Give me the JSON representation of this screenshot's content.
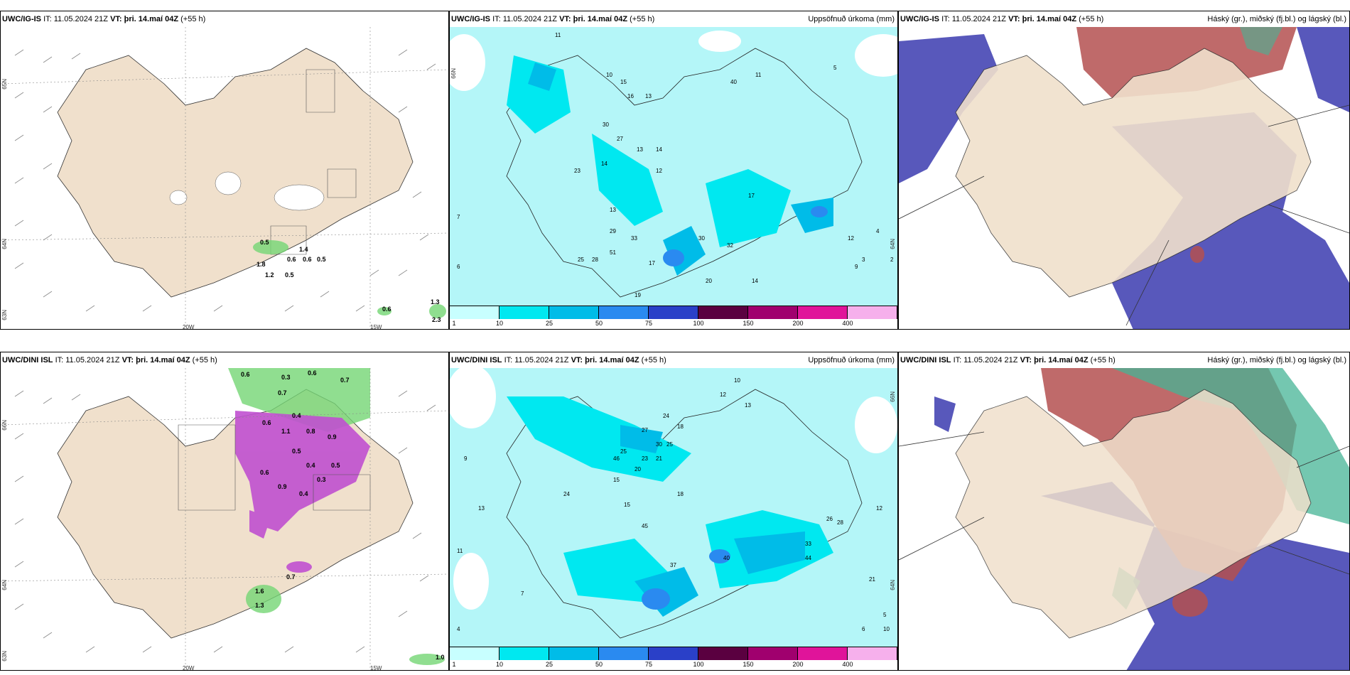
{
  "panels": [
    {
      "id": "p1",
      "model": "UWC/IG-IS",
      "it_label": "IT:",
      "it_value": "11.05.2024 21Z",
      "vt_label": "VT:",
      "vt_value": "þri. 14.maí 04Z",
      "lead": "(+55 h)",
      "right_title": "",
      "lat_labels": [
        "65N",
        "64N",
        "63N"
      ],
      "lon_labels": [
        "20W",
        "15W"
      ],
      "values": [
        "0.5",
        "1.4",
        "0.6",
        "0.6",
        "0.5",
        "1.2",
        "0.5",
        "0.6",
        "1.3",
        "2.3",
        "1.8"
      ]
    },
    {
      "id": "p2",
      "model": "UWC/IG-IS",
      "it_label": "IT:",
      "it_value": "11.05.2024 21Z",
      "vt_label": "VT:",
      "vt_value": "þri. 14.maí 04Z",
      "lead": "(+55 h)",
      "right_title": "Uppsöfnuð úrkoma (mm)",
      "lat_labels": [
        "66N",
        "64N"
      ],
      "values": [
        "11",
        "10",
        "15",
        "16",
        "13",
        "30",
        "27",
        "13",
        "14",
        "12",
        "23",
        "14",
        "13",
        "29",
        "33",
        "51",
        "25",
        "28",
        "17",
        "20",
        "17",
        "30",
        "32",
        "40",
        "11",
        "7",
        "6",
        "12",
        "14",
        "19",
        "9",
        "5",
        "3",
        "2",
        "4"
      ]
    },
    {
      "id": "p3",
      "model": "UWC/IG-IS",
      "it_label": "IT:",
      "it_value": "11.05.2024 21Z",
      "vt_label": "VT:",
      "vt_value": "þri. 14.maí 04Z",
      "lead": "(+55 h)",
      "right_title": "Háský (gr.), miðský (fj.bl.) og lágský (bl.)"
    },
    {
      "id": "p4",
      "model": "UWC/DINI ISL",
      "it_label": "IT:",
      "it_value": "11.05.2024 21Z",
      "vt_label": "VT:",
      "vt_value": "þri. 14.maí 04Z",
      "lead": "(+55 h)",
      "right_title": "",
      "lat_labels": [
        "66N",
        "64N",
        "63N"
      ],
      "lon_labels": [
        "20W",
        "15W"
      ],
      "values": [
        "0.6",
        "0.3",
        "0.6",
        "0.7",
        "0.7",
        "0.4",
        "0.6",
        "1.1",
        "0.8",
        "0.9",
        "0.5",
        "0.4",
        "0.3",
        "0.5",
        "0.9",
        "0.4",
        "0.6",
        "0.7",
        "1.6",
        "1.3",
        "1.0"
      ]
    },
    {
      "id": "p5",
      "model": "UWC/DINI ISL",
      "it_label": "IT:",
      "it_value": "11.05.2024 21Z",
      "vt_label": "VT:",
      "vt_value": "þri. 14.maí 04Z",
      "lead": "(+55 h)",
      "right_title": "Uppsöfnuð úrkoma (mm)",
      "lat_labels": [
        "66N",
        "64N"
      ],
      "values": [
        "10",
        "12",
        "13",
        "27",
        "24",
        "18",
        "30",
        "25",
        "20",
        "23",
        "21",
        "46",
        "25",
        "15",
        "24",
        "18",
        "15",
        "45",
        "37",
        "40",
        "44",
        "26",
        "33",
        "28",
        "12",
        "13",
        "9",
        "7",
        "4",
        "5",
        "6",
        "11",
        "21",
        "10"
      ]
    },
    {
      "id": "p6",
      "model": "UWC/DINI ISL",
      "it_label": "IT:",
      "it_value": "11.05.2024 21Z",
      "vt_label": "VT:",
      "vt_value": "þri. 14.maí 04Z",
      "lead": "(+55 h)",
      "right_title": "Háský (gr.), miðský (fj.bl.) og lágský (bl.)"
    }
  ],
  "colorbar": {
    "labels": [
      "1",
      "10",
      "25",
      "50",
      "75",
      "100",
      "150",
      "200",
      "400"
    ],
    "colors": [
      "#c8ffff",
      "#00e8f0",
      "#00bce8",
      "#2a8af0",
      "#2a40c8",
      "#5a0040",
      "#a0006e",
      "#e0149a",
      "#f6b0ec"
    ]
  },
  "colors": {
    "land": "#f0e0cc",
    "light_precip": "#b4f6f8",
    "cloud_low": "#4646b4",
    "cloud_high": "#b45050",
    "cloud_mid": "#46b496",
    "green_precip": "#74d674",
    "purple_precip": "#c050d0"
  }
}
